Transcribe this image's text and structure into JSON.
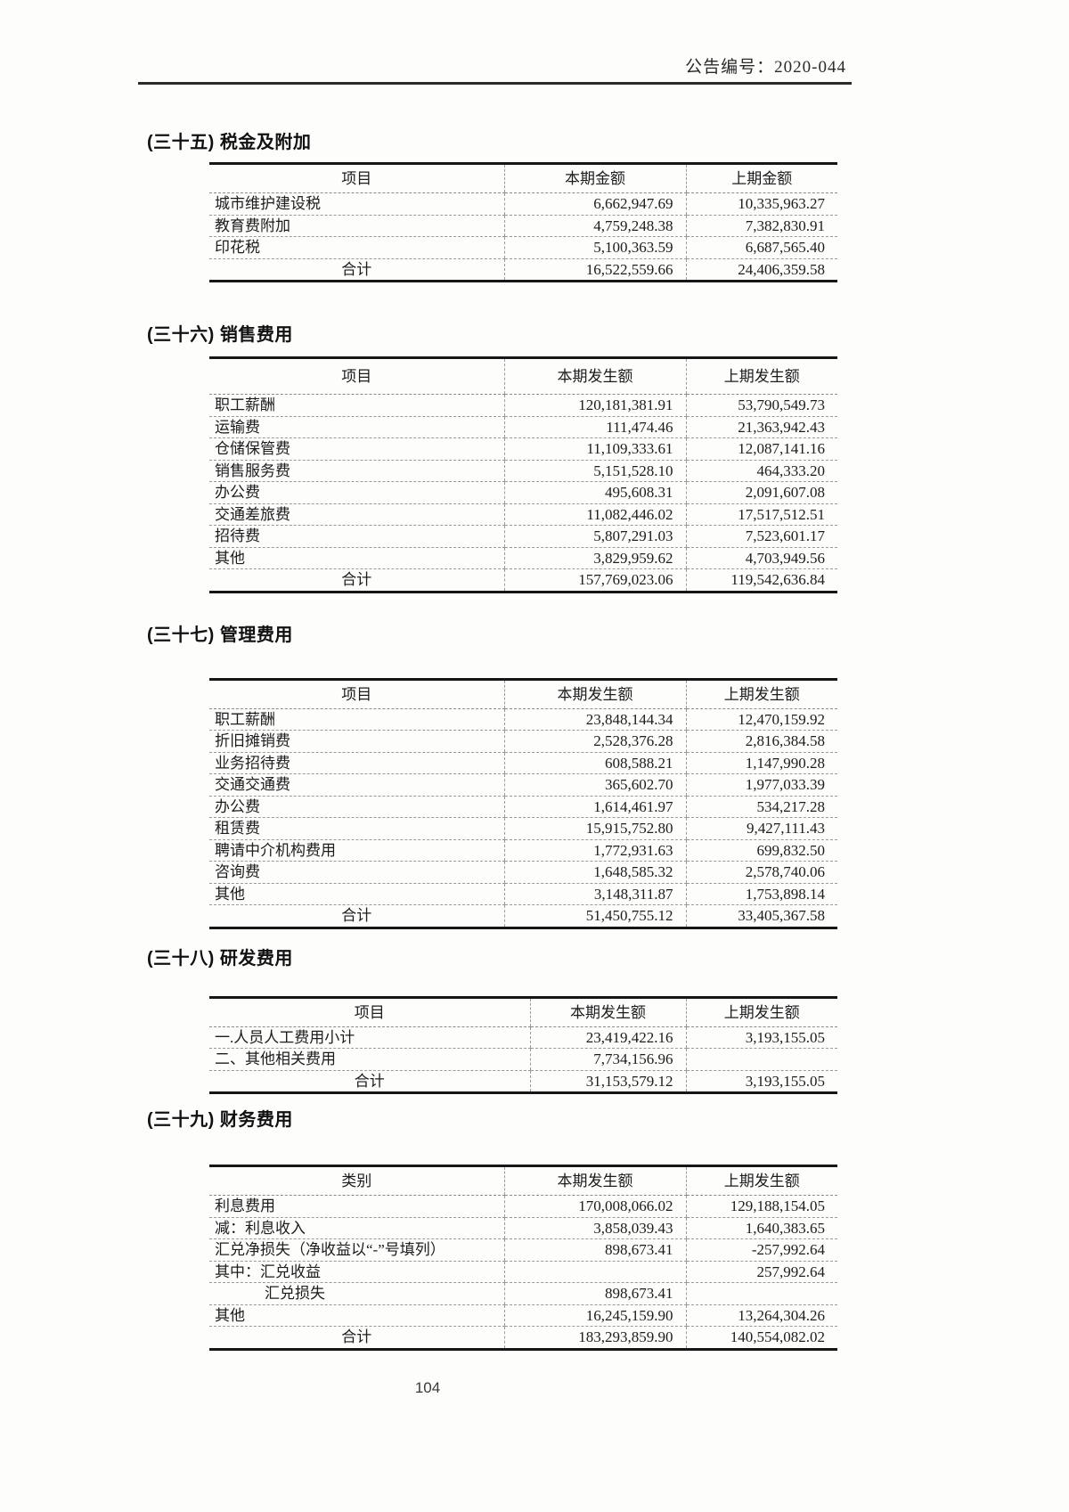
{
  "page": {
    "announcement_no": "公告编号：2020-044",
    "page_number": "104"
  },
  "sections": [
    {
      "heading": "(三十五) 税金及附加",
      "columns": [
        "项目",
        "本期金额",
        "上期金额"
      ],
      "rows": [
        [
          "城市维护建设税",
          "6,662,947.69",
          "10,335,963.27"
        ],
        [
          "教育费附加",
          "4,759,248.38",
          "7,382,830.91"
        ],
        [
          "印花税",
          "5,100,363.59",
          "6,687,565.40"
        ]
      ],
      "total": [
        "合计",
        "16,522,559.66",
        "24,406,359.58"
      ]
    },
    {
      "heading": "(三十六) 销售费用",
      "columns": [
        "项目",
        "本期发生额",
        "上期发生额"
      ],
      "rows": [
        [
          "职工薪酬",
          "120,181,381.91",
          "53,790,549.73"
        ],
        [
          "运输费",
          "111,474.46",
          "21,363,942.43"
        ],
        [
          "仓储保管费",
          "11,109,333.61",
          "12,087,141.16"
        ],
        [
          "销售服务费",
          "5,151,528.10",
          "464,333.20"
        ],
        [
          "办公费",
          "495,608.31",
          "2,091,607.08"
        ],
        [
          "交通差旅费",
          "11,082,446.02",
          "17,517,512.51"
        ],
        [
          "招待费",
          "5,807,291.03",
          "7,523,601.17"
        ],
        [
          "其他",
          "3,829,959.62",
          "4,703,949.56"
        ]
      ],
      "total": [
        "合计",
        "157,769,023.06",
        "119,542,636.84"
      ]
    },
    {
      "heading": "(三十七) 管理费用",
      "columns": [
        "项目",
        "本期发生额",
        "上期发生额"
      ],
      "rows": [
        [
          "职工薪酬",
          "23,848,144.34",
          "12,470,159.92"
        ],
        [
          "折旧摊销费",
          "2,528,376.28",
          "2,816,384.58"
        ],
        [
          "业务招待费",
          "608,588.21",
          "1,147,990.28"
        ],
        [
          "交通交通费",
          "365,602.70",
          "1,977,033.39"
        ],
        [
          "办公费",
          "1,614,461.97",
          "534,217.28"
        ],
        [
          "租赁费",
          "15,915,752.80",
          "9,427,111.43"
        ],
        [
          "聘请中介机构费用",
          "1,772,931.63",
          "699,832.50"
        ],
        [
          "咨询费",
          "1,648,585.32",
          "2,578,740.06"
        ],
        [
          "其他",
          "3,148,311.87",
          "1,753,898.14"
        ]
      ],
      "total": [
        "合计",
        "51,450,755.12",
        "33,405,367.58"
      ]
    },
    {
      "heading": "(三十八) 研发费用",
      "columns": [
        "项目",
        "本期发生额",
        "上期发生额"
      ],
      "rows": [
        [
          "一.人员人工费用小计",
          "23,419,422.16",
          "3,193,155.05"
        ],
        [
          "二、其他相关费用",
          "7,734,156.96",
          ""
        ]
      ],
      "total": [
        "合计",
        "31,153,579.12",
        "3,193,155.05"
      ]
    },
    {
      "heading": "(三十九) 财务费用",
      "columns": [
        "类别",
        "本期发生额",
        "上期发生额"
      ],
      "rows": [
        [
          "利息费用",
          "170,008,066.02",
          "129,188,154.05"
        ],
        [
          "减：利息收入",
          "3,858,039.43",
          "1,640,383.65"
        ],
        [
          "汇兑净损失（净收益以“-”号填列）",
          "898,673.41",
          "-257,992.64"
        ],
        [
          "其中：汇兑收益",
          "",
          "257,992.64"
        ],
        [
          "汇兑损失",
          "898,673.41",
          ""
        ],
        [
          "其他",
          "16,245,159.90",
          "13,264,304.26"
        ]
      ],
      "total": [
        "合计",
        "183,293,859.90",
        "140,554,082.02"
      ]
    }
  ]
}
